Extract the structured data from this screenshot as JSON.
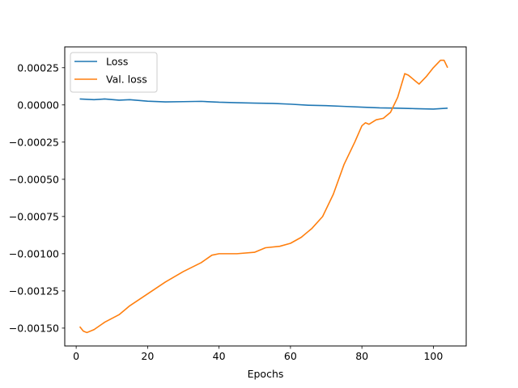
{
  "chart_data": {
    "type": "line",
    "title": "",
    "xlabel": "Epochs",
    "ylabel": "",
    "xlim": [
      -3.2,
      109.2
    ],
    "ylim": [
      -0.00162,
      0.00039
    ],
    "xticks": [
      0,
      20,
      40,
      60,
      80,
      100
    ],
    "xtick_labels": [
      "0",
      "20",
      "40",
      "60",
      "80",
      "100"
    ],
    "yticks": [
      0.00025,
      0.0,
      -0.00025,
      -0.0005,
      -0.00075,
      -0.001,
      -0.00125,
      -0.0015
    ],
    "ytick_labels": [
      "0.00025",
      "0.00000",
      "−0.00025",
      "−0.00050",
      "−0.00075",
      "−0.00100",
      "−0.00125",
      "−0.00150"
    ],
    "grid": false,
    "legend_position": "upper-left",
    "series": [
      {
        "name": "Loss",
        "color": "#1f77b4",
        "points": [
          [
            1,
            4e-05
          ],
          [
            5,
            3.5e-05
          ],
          [
            8,
            4e-05
          ],
          [
            12,
            3.2e-05
          ],
          [
            15,
            3.5e-05
          ],
          [
            20,
            2.5e-05
          ],
          [
            25,
            2e-05
          ],
          [
            30,
            2.2e-05
          ],
          [
            35,
            2.4e-05
          ],
          [
            40,
            1.8e-05
          ],
          [
            45,
            1.5e-05
          ],
          [
            50,
            1.2e-05
          ],
          [
            55,
            1e-05
          ],
          [
            60,
            5e-06
          ],
          [
            65,
            -2e-06
          ],
          [
            70,
            -5e-06
          ],
          [
            75,
            -1e-05
          ],
          [
            80,
            -1.5e-05
          ],
          [
            85,
            -2e-05
          ],
          [
            90,
            -2.2e-05
          ],
          [
            95,
            -2.5e-05
          ],
          [
            100,
            -2.8e-05
          ],
          [
            104,
            -2.2e-05
          ]
        ]
      },
      {
        "name": "Val. loss",
        "color": "#ff7f0e",
        "points": [
          [
            1,
            -0.00149
          ],
          [
            2,
            -0.00152
          ],
          [
            3,
            -0.00153
          ],
          [
            5,
            -0.00151
          ],
          [
            8,
            -0.00146
          ],
          [
            12,
            -0.00141
          ],
          [
            15,
            -0.00135
          ],
          [
            20,
            -0.00127
          ],
          [
            25,
            -0.00119
          ],
          [
            30,
            -0.00112
          ],
          [
            35,
            -0.00106
          ],
          [
            38,
            -0.00101
          ],
          [
            40,
            -0.001
          ],
          [
            45,
            -0.001
          ],
          [
            50,
            -0.00099
          ],
          [
            53,
            -0.00096
          ],
          [
            57,
            -0.00095
          ],
          [
            60,
            -0.00093
          ],
          [
            63,
            -0.00089
          ],
          [
            66,
            -0.00083
          ],
          [
            69,
            -0.00075
          ],
          [
            72,
            -0.0006
          ],
          [
            75,
            -0.0004
          ],
          [
            78,
            -0.00025
          ],
          [
            80,
            -0.00014
          ],
          [
            81,
            -0.00012
          ],
          [
            82,
            -0.00013
          ],
          [
            84,
            -0.0001
          ],
          [
            86,
            -9e-05
          ],
          [
            88,
            -5e-05
          ],
          [
            90,
            5e-05
          ],
          [
            92,
            0.00021
          ],
          [
            93,
            0.0002
          ],
          [
            95,
            0.00016
          ],
          [
            96,
            0.00014
          ],
          [
            98,
            0.00019
          ],
          [
            100,
            0.00025
          ],
          [
            102,
            0.0003
          ],
          [
            103,
            0.0003
          ],
          [
            104,
            0.00025
          ]
        ]
      }
    ]
  }
}
